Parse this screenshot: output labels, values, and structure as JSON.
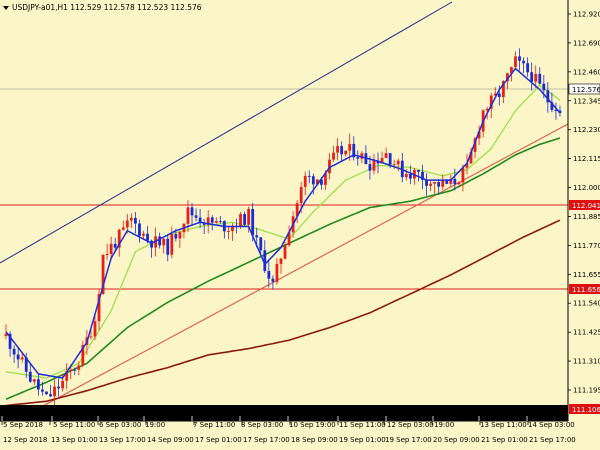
{
  "header": {
    "title": "USDJPY-a01,H1  112.529 112.578 112.523 112.576",
    "collapse_icon": "triangle-down-icon"
  },
  "colors": {
    "background": "#fbf5c7",
    "bull": "#e8201a",
    "bear": "#1b2bd4",
    "ma_fast": "#1c2ed6",
    "ma_mid": "#9be24a",
    "ma_slow": "#238a1d",
    "ma_long": "#8b1a10",
    "channel_upper": "#1c2a8c",
    "channel_lower": "#e24a3a",
    "hline": "#e02020",
    "tag_red": "#e01010"
  },
  "price_axis": {
    "labels": [
      "112.920",
      "112.690",
      "112.460",
      "112.345",
      "112.230",
      "112.115",
      "112.000",
      "111.885",
      "111.770",
      "111.655",
      "111.540",
      "111.425",
      "111.310",
      "111.195"
    ]
  },
  "price_tags": {
    "current": "112.576",
    "level1": "112.041",
    "level2": "111.656",
    "low": "111.106"
  },
  "time_axis": {
    "top_row": [
      "5 Sep 2018",
      "5 Sep 11:00",
      "6 Sep 03:00",
      "19:00",
      "7 Sep 11:00",
      "8 Sep 03:00",
      "10 Sep 19:00",
      "11 Sep 11:00",
      "12 Sep 03:00",
      "19:00",
      "13 Sep 11:00",
      "14 Sep 03:00"
    ],
    "bottom_row": [
      "12 Sep 2018",
      "13 Sep 01:00",
      "13 Sep 17:00",
      "14 Sep 09:00",
      "17 Sep 01:00",
      "17 Sep 17:00",
      "18 Sep 09:00",
      "19 Sep 01:00",
      "19 Sep 17:00",
      "20 Sep 09:00",
      "21 Sep 01:00",
      "21 Sep 17:00"
    ]
  },
  "chart_data": {
    "type": "candlestick",
    "symbol": "USDJPY-a01",
    "timeframe": "H1",
    "ylim": [
      111.1,
      112.99
    ],
    "last_price": 112.576,
    "horizontal_levels": [
      112.041,
      111.656
    ],
    "anchors": [
      [
        0,
        111.48
      ],
      [
        6,
        111.28
      ],
      [
        10,
        111.18
      ],
      [
        14,
        111.26
      ],
      [
        18,
        111.36
      ],
      [
        22,
        111.56
      ],
      [
        24,
        111.86
      ],
      [
        28,
        111.95
      ],
      [
        31,
        112.03
      ],
      [
        35,
        111.94
      ],
      [
        40,
        111.9
      ],
      [
        45,
        112.07
      ],
      [
        50,
        112.02
      ],
      [
        55,
        112.0
      ],
      [
        60,
        112.05
      ],
      [
        62,
        111.92
      ],
      [
        66,
        111.72
      ],
      [
        70,
        112.0
      ],
      [
        74,
        112.23
      ],
      [
        78,
        112.23
      ],
      [
        82,
        112.35
      ],
      [
        86,
        112.36
      ],
      [
        90,
        112.3
      ],
      [
        94,
        112.35
      ],
      [
        98,
        112.26
      ],
      [
        102,
        112.25
      ],
      [
        106,
        112.2
      ],
      [
        110,
        112.2
      ],
      [
        114,
        112.27
      ],
      [
        118,
        112.55
      ],
      [
        122,
        112.63
      ],
      [
        126,
        112.78
      ],
      [
        130,
        112.72
      ],
      [
        134,
        112.6
      ],
      [
        137,
        112.56
      ]
    ],
    "ma_fast_anchors": [
      [
        0,
        111.5
      ],
      [
        8,
        111.3
      ],
      [
        14,
        111.28
      ],
      [
        20,
        111.45
      ],
      [
        26,
        111.85
      ],
      [
        30,
        111.98
      ],
      [
        36,
        111.92
      ],
      [
        42,
        111.98
      ],
      [
        48,
        112.02
      ],
      [
        54,
        112.0
      ],
      [
        60,
        112.0
      ],
      [
        64,
        111.82
      ],
      [
        68,
        111.9
      ],
      [
        74,
        112.12
      ],
      [
        80,
        112.28
      ],
      [
        86,
        112.34
      ],
      [
        92,
        112.31
      ],
      [
        98,
        112.27
      ],
      [
        104,
        112.22
      ],
      [
        110,
        112.22
      ],
      [
        114,
        112.3
      ],
      [
        118,
        112.5
      ],
      [
        122,
        112.65
      ],
      [
        126,
        112.75
      ],
      [
        132,
        112.65
      ],
      [
        137,
        112.54
      ]
    ],
    "ma_mid_anchors": [
      [
        0,
        111.31
      ],
      [
        10,
        111.28
      ],
      [
        18,
        111.35
      ],
      [
        26,
        111.6
      ],
      [
        32,
        111.88
      ],
      [
        40,
        111.96
      ],
      [
        48,
        112.0
      ],
      [
        56,
        112.02
      ],
      [
        62,
        111.99
      ],
      [
        70,
        111.94
      ],
      [
        76,
        112.07
      ],
      [
        84,
        112.22
      ],
      [
        92,
        112.29
      ],
      [
        100,
        112.28
      ],
      [
        108,
        112.24
      ],
      [
        114,
        112.27
      ],
      [
        120,
        112.37
      ],
      [
        126,
        112.55
      ],
      [
        132,
        112.67
      ],
      [
        137,
        112.6
      ]
    ],
    "ma_slow_anchors": [
      [
        0,
        111.18
      ],
      [
        10,
        111.26
      ],
      [
        20,
        111.35
      ],
      [
        30,
        111.52
      ],
      [
        40,
        111.64
      ],
      [
        50,
        111.74
      ],
      [
        60,
        111.83
      ],
      [
        70,
        111.92
      ],
      [
        80,
        112.01
      ],
      [
        90,
        112.09
      ],
      [
        100,
        112.12
      ],
      [
        110,
        112.17
      ],
      [
        118,
        112.25
      ],
      [
        126,
        112.34
      ],
      [
        132,
        112.39
      ],
      [
        137,
        112.42
      ]
    ],
    "ma_long_anchors": [
      [
        0,
        111.15
      ],
      [
        10,
        111.17
      ],
      [
        20,
        111.22
      ],
      [
        30,
        111.28
      ],
      [
        40,
        111.33
      ],
      [
        50,
        111.39
      ],
      [
        60,
        111.42
      ],
      [
        70,
        111.46
      ],
      [
        80,
        111.52
      ],
      [
        90,
        111.59
      ],
      [
        100,
        111.68
      ],
      [
        110,
        111.77
      ],
      [
        120,
        111.87
      ],
      [
        128,
        111.95
      ],
      [
        137,
        112.03
      ]
    ]
  }
}
